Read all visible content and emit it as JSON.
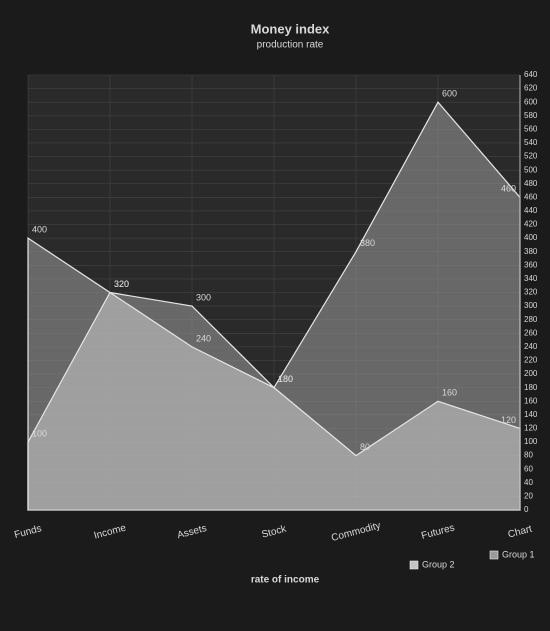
{
  "chart_data": {
    "type": "area",
    "title": "Money index",
    "subtitle": "production rate",
    "x_label": "rate of income",
    "categories": [
      "Funds",
      "Income",
      "Assets",
      "Stock",
      "Commodity",
      "Futures",
      "Chart"
    ],
    "series": [
      {
        "name": "Group 1",
        "color": "#9a9a9a",
        "values": [
          400,
          320,
          300,
          180,
          380,
          600,
          460
        ]
      },
      {
        "name": "Group 2",
        "color": "#c4c4c4",
        "values": [
          100,
          320,
          240,
          180,
          80,
          160,
          120
        ]
      }
    ],
    "ylim": [
      0,
      640
    ],
    "yticks": [
      0,
      20,
      40,
      60,
      80,
      100,
      120,
      140,
      160,
      180,
      200,
      220,
      240,
      260,
      280,
      300,
      320,
      340,
      360,
      380,
      400,
      420,
      440,
      460,
      480,
      500,
      520,
      540,
      560,
      580,
      600,
      620,
      640
    ],
    "grid": true
  }
}
